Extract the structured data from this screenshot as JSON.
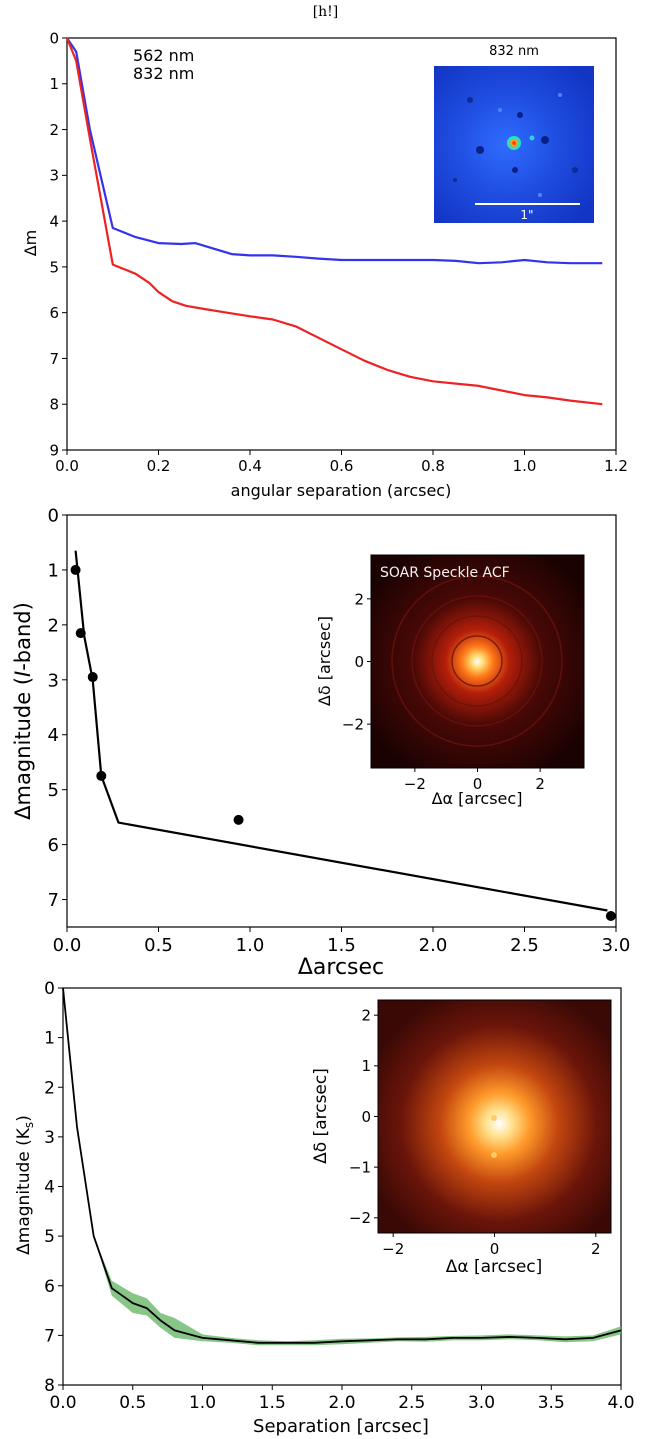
{
  "caption": "[h!]",
  "chart_data": [
    {
      "type": "line",
      "xlabel": "angular separation (arcsec)",
      "ylabel": "Δm",
      "xlim": [
        0,
        1.2
      ],
      "ylim": [
        9,
        0
      ],
      "xticks": [
        "0.0",
        "0.2",
        "0.4",
        "0.6",
        "0.8",
        "1.0",
        "1.2"
      ],
      "yticks": [
        "0",
        "1",
        "2",
        "3",
        "4",
        "5",
        "6",
        "7",
        "8",
        "9"
      ],
      "legend_position": "top-left",
      "series": [
        {
          "name": "562 nm",
          "color": "#3333ee",
          "x": [
            0.0,
            0.02,
            0.05,
            0.1,
            0.15,
            0.2,
            0.25,
            0.28,
            0.32,
            0.36,
            0.4,
            0.45,
            0.5,
            0.55,
            0.6,
            0.7,
            0.8,
            0.85,
            0.9,
            0.95,
            1.0,
            1.05,
            1.1,
            1.17
          ],
          "y": [
            0.0,
            0.3,
            2.0,
            4.15,
            4.35,
            4.48,
            4.5,
            4.48,
            4.6,
            4.72,
            4.75,
            4.75,
            4.78,
            4.82,
            4.85,
            4.85,
            4.85,
            4.87,
            4.92,
            4.9,
            4.85,
            4.9,
            4.92,
            4.92
          ]
        },
        {
          "name": "832 nm",
          "color": "#ee2222",
          "x": [
            0.0,
            0.02,
            0.05,
            0.1,
            0.15,
            0.18,
            0.2,
            0.23,
            0.26,
            0.3,
            0.35,
            0.4,
            0.45,
            0.5,
            0.55,
            0.6,
            0.65,
            0.7,
            0.75,
            0.8,
            0.85,
            0.9,
            0.95,
            1.0,
            1.05,
            1.1,
            1.17
          ],
          "y": [
            0.0,
            0.5,
            2.2,
            4.95,
            5.15,
            5.35,
            5.55,
            5.75,
            5.85,
            5.92,
            6.0,
            6.08,
            6.15,
            6.3,
            6.55,
            6.8,
            7.05,
            7.25,
            7.4,
            7.5,
            7.55,
            7.6,
            7.7,
            7.8,
            7.85,
            7.92,
            8.0
          ]
        }
      ],
      "inset": {
        "title": "832 nm",
        "scale_label": "1\""
      }
    },
    {
      "type": "line",
      "xlabel": "Δarcsec",
      "ylabel": "Δmagnitude (I-band)",
      "ylabel_prefix": "Δmagnitude (",
      "ylabel_italic": "I",
      "ylabel_suffix": "-band)",
      "xlim": [
        0,
        3.2
      ],
      "ylim": [
        7.5,
        0
      ],
      "xticks": [
        "0.0",
        "0.5",
        "1.0",
        "1.5",
        "2.0",
        "2.5",
        "3.0"
      ],
      "yticks": [
        "0",
        "1",
        "2",
        "3",
        "4",
        "5",
        "6",
        "7"
      ],
      "series": [
        {
          "name": "",
          "color": "#000000",
          "x": [
            0.05,
            0.1,
            0.15,
            0.2,
            0.3,
            3.15
          ],
          "y": [
            0.65,
            2.2,
            3.0,
            4.75,
            5.6,
            7.2
          ]
        }
      ],
      "points": {
        "x": [
          0.05,
          0.08,
          0.15,
          0.2,
          1.0,
          3.17
        ],
        "y": [
          1.0,
          2.15,
          2.95,
          4.75,
          5.55,
          7.3
        ]
      },
      "inset": {
        "title": "SOAR Speckle ACF",
        "xlabel": "Δα [arcsec]",
        "ylabel": "Δδ [arcsec]",
        "xticks": [
          "−2",
          "0",
          "2"
        ],
        "yticks": [
          "2",
          "0",
          "−2"
        ]
      }
    },
    {
      "type": "line",
      "xlabel": "Separation [arcsec]",
      "ylabel": "Δmagnitude (K",
      "ylabel_sub": "s",
      "ylabel_suffix": ")",
      "xlim": [
        0,
        4.0
      ],
      "ylim": [
        8,
        0
      ],
      "xticks": [
        "0.0",
        "0.5",
        "1.0",
        "1.5",
        "2.0",
        "2.5",
        "3.0",
        "3.5",
        "4.0"
      ],
      "yticks": [
        "0",
        "1",
        "2",
        "3",
        "4",
        "5",
        "6",
        "7",
        "8"
      ],
      "series": [
        {
          "name": "",
          "color": "#000000",
          "band_color": "#6ab86a",
          "x": [
            0.0,
            0.1,
            0.22,
            0.35,
            0.5,
            0.6,
            0.7,
            0.8,
            1.0,
            1.2,
            1.4,
            1.6,
            1.8,
            2.0,
            2.2,
            2.4,
            2.6,
            2.8,
            3.0,
            3.2,
            3.4,
            3.6,
            3.8,
            4.0
          ],
          "y": [
            0.0,
            2.8,
            5.0,
            6.05,
            6.35,
            6.45,
            6.7,
            6.9,
            7.05,
            7.1,
            7.15,
            7.15,
            7.15,
            7.12,
            7.1,
            7.08,
            7.08,
            7.05,
            7.05,
            7.03,
            7.05,
            7.08,
            7.05,
            6.9
          ],
          "band_lower": [
            0.0,
            2.8,
            5.0,
            5.9,
            6.15,
            6.25,
            6.55,
            6.65,
            6.98,
            7.05,
            7.1,
            7.12,
            7.1,
            7.07,
            7.06,
            7.04,
            7.03,
            7.01,
            7.0,
            6.98,
            7.0,
            7.02,
            7.0,
            6.82
          ],
          "band_upper": [
            0.0,
            2.8,
            5.0,
            6.2,
            6.55,
            6.6,
            6.85,
            7.05,
            7.12,
            7.15,
            7.2,
            7.2,
            7.2,
            7.18,
            7.15,
            7.12,
            7.13,
            7.1,
            7.1,
            7.08,
            7.1,
            7.14,
            7.12,
            6.98
          ]
        }
      ],
      "inset": {
        "xlabel": "Δα [arcsec]",
        "ylabel": "Δδ [arcsec]",
        "xticks": [
          "−2",
          "0",
          "2"
        ],
        "yticks": [
          "2",
          "1",
          "0",
          "−1",
          "−2"
        ]
      }
    }
  ]
}
